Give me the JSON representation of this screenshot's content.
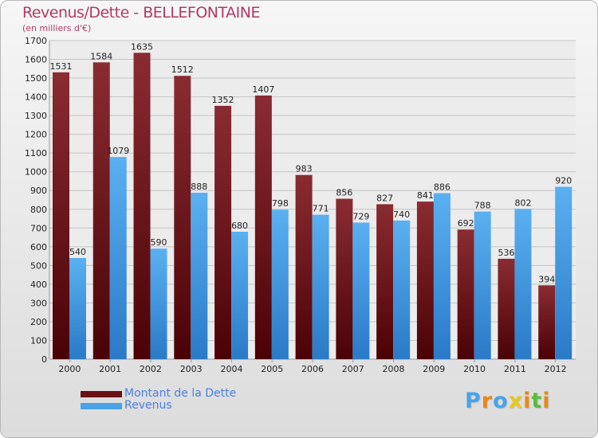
{
  "chart_data": {
    "type": "bar",
    "title": "Revenus/Dette - BELLEFONTAINE",
    "subtitle": "(en milliers d'€)",
    "categories": [
      "2000",
      "2001",
      "2002",
      "2003",
      "2004",
      "2005",
      "2006",
      "2007",
      "2008",
      "2009",
      "2010",
      "2011",
      "2012"
    ],
    "series": [
      {
        "name": "Montant de la Dette",
        "color": "#7a1a1e",
        "values": [
          1531,
          1584,
          1635,
          1512,
          1352,
          1407,
          983,
          856,
          827,
          841,
          692,
          536,
          394
        ]
      },
      {
        "name": "Revenus",
        "color": "#4aa3e8",
        "values": [
          540,
          1079,
          590,
          888,
          680,
          798,
          771,
          729,
          740,
          886,
          788,
          802,
          920
        ]
      }
    ],
    "ylim": [
      0,
      1700
    ],
    "yticks": [
      0,
      100,
      200,
      300,
      400,
      500,
      600,
      700,
      800,
      900,
      1000,
      1100,
      1200,
      1300,
      1400,
      1500,
      1600,
      1700
    ],
    "grid": true,
    "legend_position": "bottom-left"
  },
  "logo": {
    "letters": [
      "P",
      "r",
      "o",
      "x",
      "i",
      "t",
      "i"
    ],
    "colors": [
      "#4aa3e8",
      "#e8891a",
      "#4aa3e8",
      "#e8c81a",
      "#e8891a",
      "#5bbd3a",
      "#e8891a"
    ]
  }
}
